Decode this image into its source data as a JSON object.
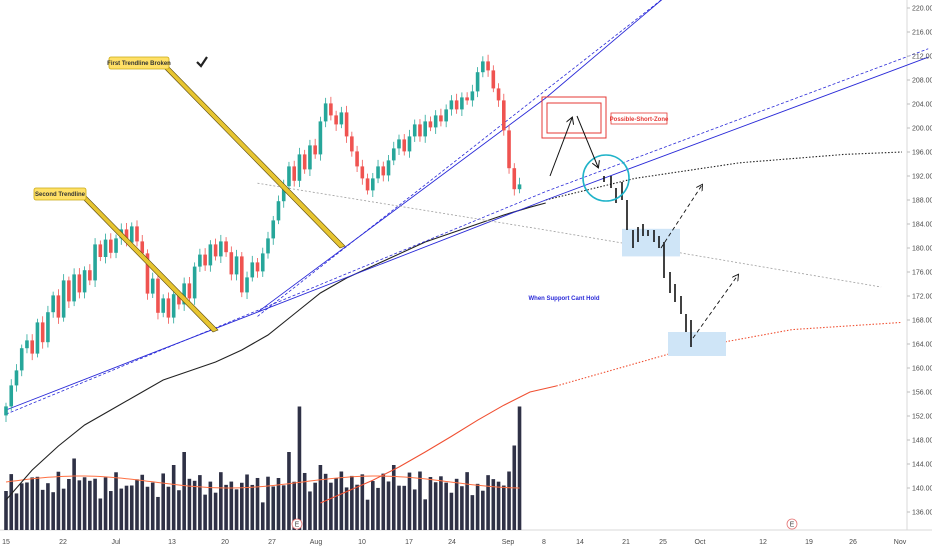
{
  "chart_data": {
    "type": "candlestick",
    "title": "",
    "xlabel": "",
    "ylabel": "",
    "ylim": [
      134,
      222
    ],
    "y_ticks": [
      "220.00",
      "216.00",
      "212.00",
      "208.00",
      "204.00",
      "200.00",
      "196.00",
      "192.00",
      "188.00",
      "184.00",
      "180.00",
      "176.00",
      "172.00",
      "168.00",
      "164.00",
      "160.00",
      "156.00",
      "152.00",
      "148.00",
      "144.00",
      "140.00",
      "136.00"
    ],
    "x_ticks": [
      "15",
      "22",
      "Jul",
      "13",
      "20",
      "27",
      "Aug",
      "10",
      "17",
      "24",
      "Sep",
      "8",
      "14",
      "21",
      "25",
      "Oct",
      "12",
      "19",
      "26",
      "Nov"
    ],
    "grid": false,
    "series": [
      {
        "type": "candles",
        "period": "Jun 15 - Sep 6",
        "close": [
          153.6,
          157.1,
          159.6,
          163.3,
          164.6,
          162.4,
          167.6,
          164.3,
          169.3,
          172.1,
          168.4,
          174.6,
          171.1,
          175.6,
          172.6,
          176.3,
          174.6,
          180.6,
          178.5,
          181.4,
          179.2,
          181.6,
          183.1,
          180.9,
          183.6,
          181.1,
          179.1,
          172.4,
          174.9,
          169.2,
          171.6,
          168.4,
          172.3,
          170.6,
          174.1,
          171.6,
          176.9,
          178.9,
          177.1,
          180.6,
          178.6,
          181.1,
          179.3,
          175.6,
          178.6,
          172.6,
          175.1,
          177.6,
          176.1,
          179.1,
          181.6,
          184.6,
          187.8,
          190.3,
          193.6,
          191.2,
          195.6,
          193.1,
          197.1,
          195.6,
          201.1,
          204.1,
          202.1,
          200.6,
          202.6,
          198.6,
          196.1,
          193.6,
          191.6,
          189.6,
          191.6,
          193.6,
          192.1,
          194.6,
          196.6,
          198.1,
          196.1,
          198.6,
          200.6,
          198.6,
          201.1,
          200.1,
          202.1,
          201.1,
          203.1,
          204.6,
          203.1,
          205.1,
          204.6,
          206.1,
          209.3,
          211.1,
          209.6,
          206.6,
          204.6,
          199.6,
          193.3,
          189.8,
          190.6
        ]
      },
      {
        "type": "line",
        "name": "",
        "color": "#222222",
        "x": [
          0,
          5,
          10,
          15,
          20,
          25,
          30,
          35,
          40,
          45,
          50,
          55,
          60,
          65,
          70,
          75,
          80,
          85,
          90,
          95,
          100,
          103
        ],
        "y": [
          138,
          143,
          147,
          150.5,
          153,
          155.5,
          158,
          159.5,
          161,
          163,
          165.5,
          169,
          172.5,
          175,
          177,
          179,
          181,
          182.5,
          184,
          185.5,
          186.8,
          187.5
        ]
      },
      {
        "type": "line",
        "name": "",
        "color": "#f05032",
        "x": [
          60,
          65,
          70,
          75,
          80,
          85,
          90,
          95,
          100,
          105
        ],
        "y": [
          137.5,
          139.4,
          141.3,
          143.5,
          146,
          148.6,
          151.3,
          153.8,
          156,
          157
        ]
      },
      {
        "type": "line",
        "name": "",
        "color": "#2a2ad8",
        "x": [
          0,
          103,
          176
        ],
        "y": [
          153,
          188,
          211.8
        ]
      },
      {
        "type": "line",
        "name": "",
        "color": "#2a2ad8",
        "x": [
          48,
          103,
          126
        ],
        "y": [
          169.3,
          205,
          222
        ]
      }
    ],
    "projections": {
      "dotted_black": {
        "x": [
          103,
          120,
          140,
          160,
          171
        ],
        "y": [
          188,
          191.6,
          194.2,
          195.6,
          196
        ]
      },
      "dotted_red": {
        "x": [
          105,
          130,
          150,
          171
        ],
        "y": [
          157,
          163.2,
          166.4,
          167.6
        ]
      },
      "dashed_gray": {
        "x": [
          48,
          103,
          167
        ],
        "y": [
          190.8,
          183,
          173.5
        ]
      }
    },
    "volume": {
      "note": "relative volume bars, Jun 15 - Sep 6"
    },
    "annotations": [
      "First Trendline Broken",
      "Second Trendline",
      "Possible-Short-Zone",
      "When Support Cant Hold"
    ],
    "event_markers": [
      "E",
      "E"
    ],
    "colors": {
      "up": "#26a69a",
      "down": "#ef5350",
      "volume": "#2f3146",
      "label_fill": "#ffe066",
      "zone": "#cfe5f7"
    }
  }
}
